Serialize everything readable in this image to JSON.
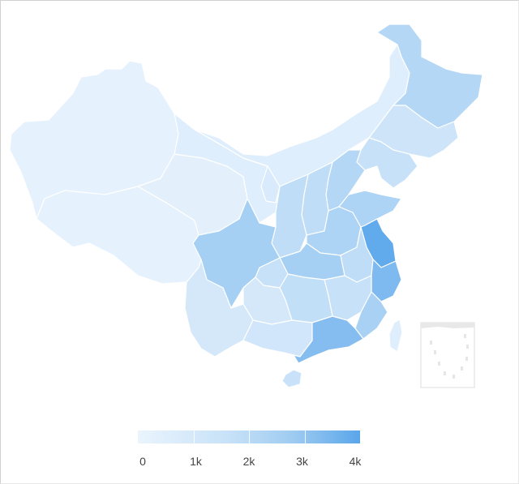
{
  "map": {
    "regions": [
      {
        "name": "xinjiang",
        "value": 150
      },
      {
        "name": "tibet",
        "value": 150
      },
      {
        "name": "qinghai",
        "value": 200
      },
      {
        "name": "gansu",
        "value": 300
      },
      {
        "name": "inner-mongolia",
        "value": 300
      },
      {
        "name": "heilongjiang",
        "value": 1500
      },
      {
        "name": "jilin",
        "value": 800
      },
      {
        "name": "liaoning",
        "value": 1000
      },
      {
        "name": "hebei",
        "value": 1500
      },
      {
        "name": "shanxi",
        "value": 1200
      },
      {
        "name": "shaanxi",
        "value": 1200
      },
      {
        "name": "ningxia",
        "value": 500
      },
      {
        "name": "henan",
        "value": 1700
      },
      {
        "name": "shandong",
        "value": 1700
      },
      {
        "name": "jiangsu",
        "value": 3800
      },
      {
        "name": "anhui",
        "value": 1200
      },
      {
        "name": "hubei",
        "value": 1900
      },
      {
        "name": "zhejiang",
        "value": 3000
      },
      {
        "name": "sichuan",
        "value": 1900
      },
      {
        "name": "chongqing",
        "value": 1000
      },
      {
        "name": "hunan",
        "value": 1100
      },
      {
        "name": "jiangxi",
        "value": 1000
      },
      {
        "name": "fujian",
        "value": 1800
      },
      {
        "name": "guangdong",
        "value": 2800
      },
      {
        "name": "guangxi",
        "value": 700
      },
      {
        "name": "guizhou",
        "value": 600
      },
      {
        "name": "yunnan",
        "value": 600
      },
      {
        "name": "hainan",
        "value": 900
      },
      {
        "name": "taiwan",
        "value": 300
      },
      {
        "name": "south-china-sea-inset",
        "value": 0
      }
    ],
    "colors": {
      "low": "#eaf4fd",
      "high": "#5aa6ea",
      "island": "#f6f6f6"
    }
  },
  "legend": {
    "min": 0,
    "max": 4000,
    "labels": [
      "0",
      "1k",
      "2k",
      "3k",
      "4k"
    ]
  }
}
